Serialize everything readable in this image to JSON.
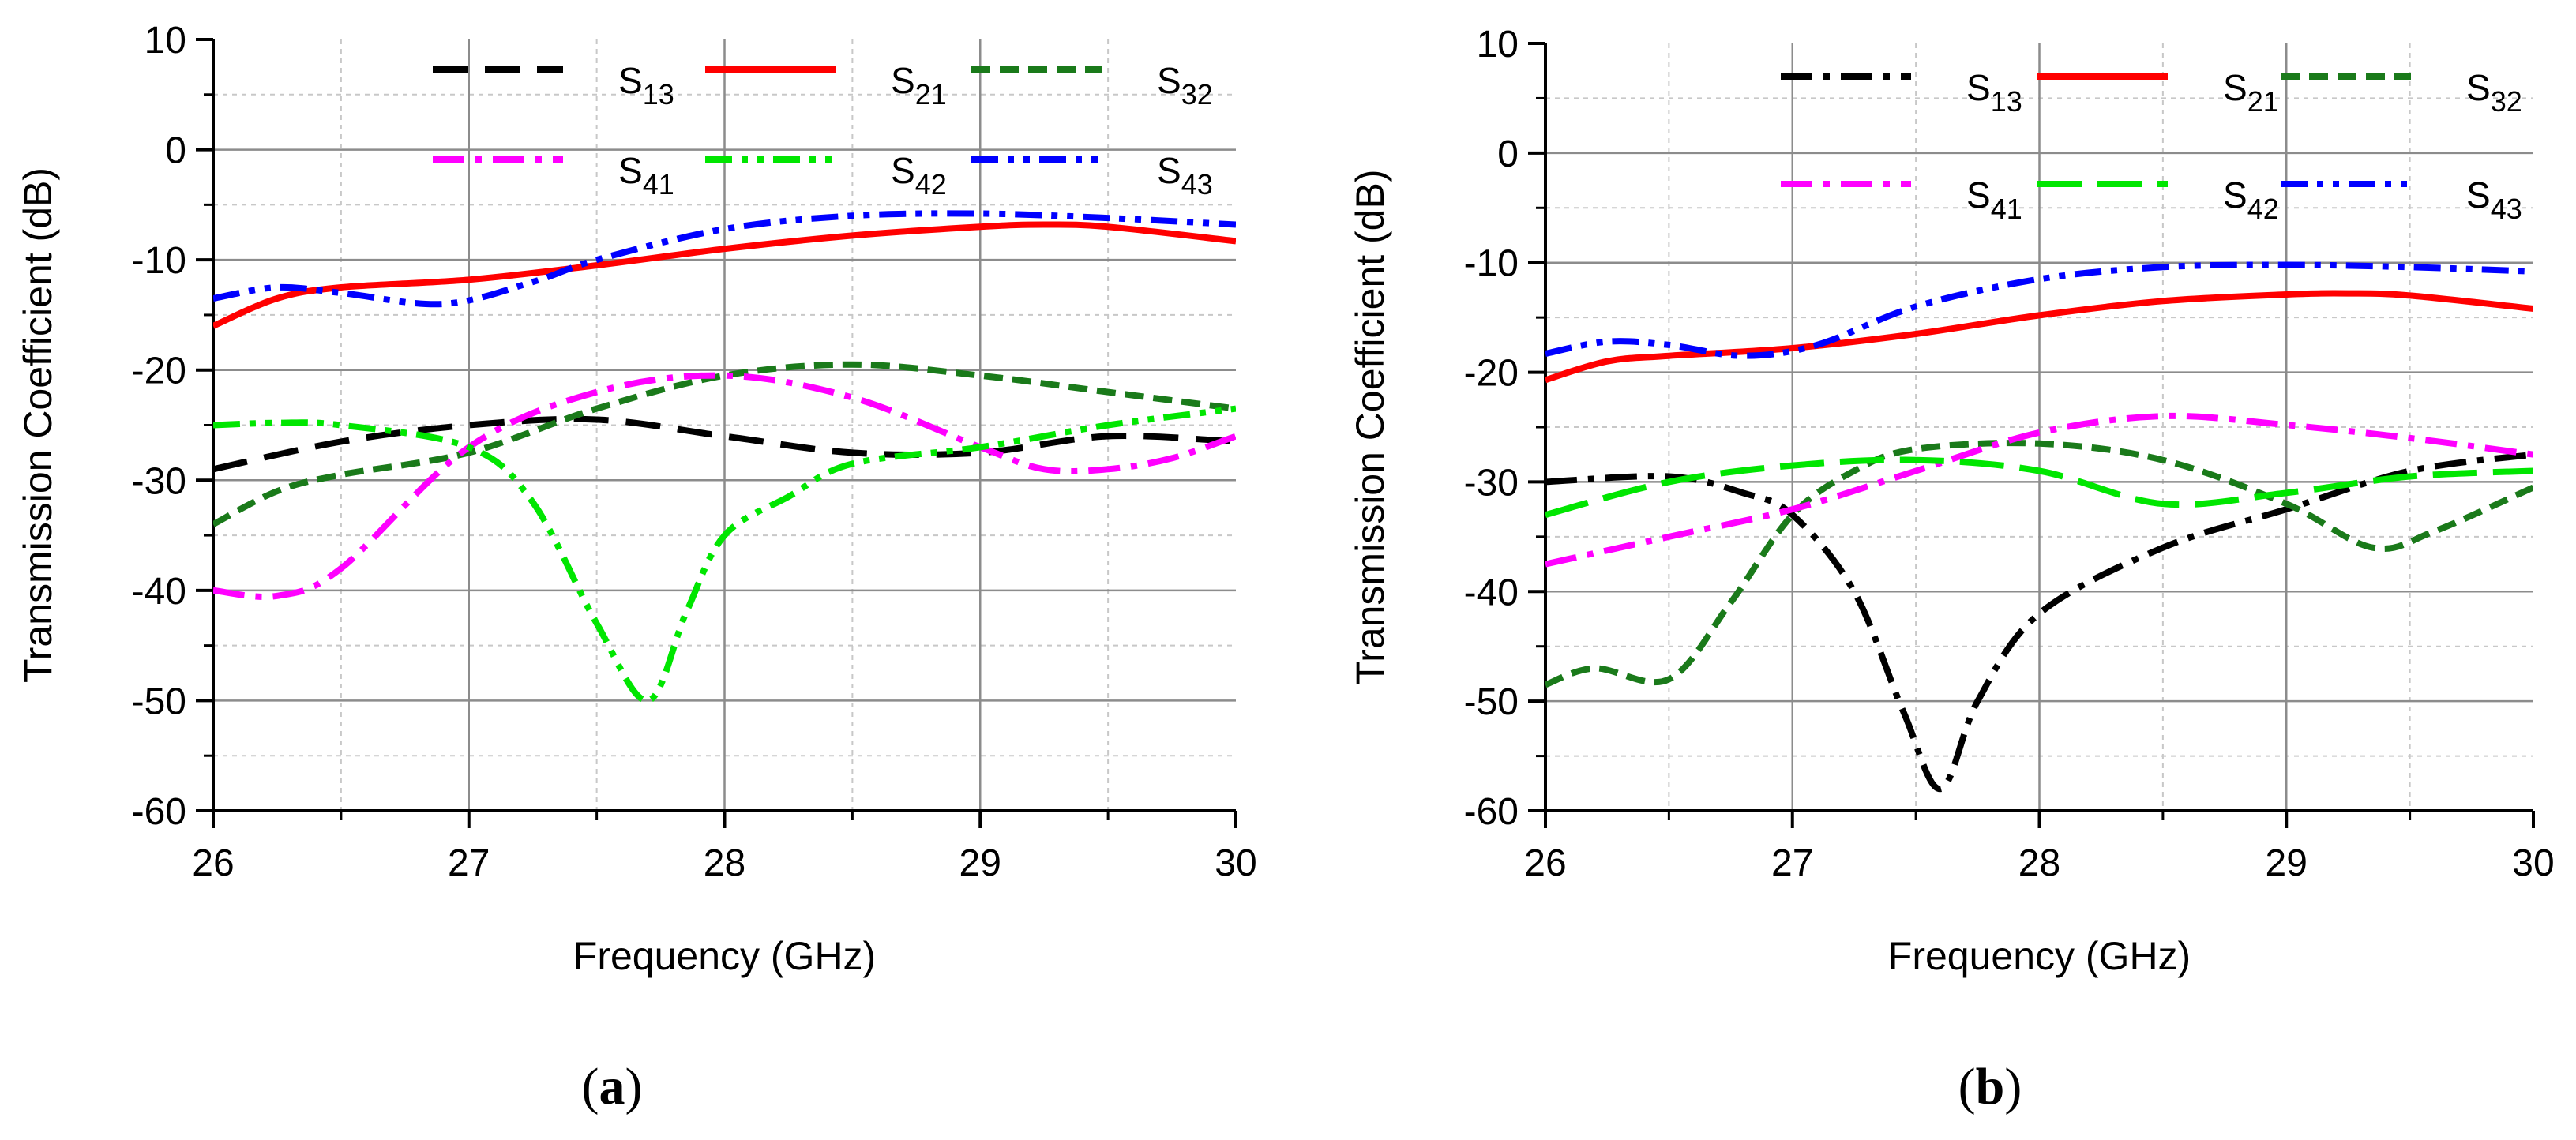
{
  "colors": {
    "s13": "#000000",
    "s21": "#ff0000",
    "s32": "#1a7a1a",
    "s41": "#ff00ff",
    "s42": "#00e600",
    "s43": "#0000ff",
    "grid_major": "#8c8c8c",
    "grid_minor": "#c8c8c8"
  },
  "chart_data": [
    {
      "id": "a",
      "type": "line",
      "caption_open": "(",
      "caption_letter": "a",
      "caption_close": ")",
      "xlabel": "Frequency (GHz)",
      "ylabel": "Transmission Coefficient (dB)",
      "xlim": [
        26,
        30
      ],
      "ylim": [
        -60,
        10
      ],
      "xticks": [
        26,
        27,
        28,
        29,
        30
      ],
      "yticks": [
        10,
        0,
        -10,
        -20,
        -30,
        -40,
        -50,
        -60
      ],
      "grid": true,
      "legend_position": "top",
      "series": [
        {
          "key": "s13",
          "name": "S",
          "sub": "13",
          "dash": "dash",
          "x": [
            26,
            26.5,
            27,
            27.5,
            28,
            28.5,
            29,
            29.5,
            30
          ],
          "y": [
            -29,
            -26.5,
            -25,
            -24.5,
            -26,
            -27.5,
            -27.5,
            -26,
            -26.5
          ]
        },
        {
          "key": "s21",
          "name": "S",
          "sub": "21",
          "dash": "solid",
          "x": [
            26,
            26.25,
            26.5,
            27,
            27.5,
            28,
            28.5,
            29,
            29.25,
            29.5,
            30
          ],
          "y": [
            -16,
            -13.5,
            -12.5,
            -11.8,
            -10.5,
            -9,
            -7.8,
            -7,
            -6.8,
            -7,
            -8.3
          ]
        },
        {
          "key": "s32",
          "name": "S",
          "sub": "32",
          "dash": "shortdash",
          "x": [
            26,
            26.25,
            26.5,
            27,
            27.5,
            28,
            28.5,
            29,
            29.5,
            30
          ],
          "y": [
            -34,
            -31,
            -29.5,
            -27.5,
            -23.5,
            -20.5,
            -19.5,
            -20.5,
            -22,
            -23.5
          ]
        },
        {
          "key": "s41",
          "name": "S",
          "sub": "41",
          "dash": "dashdot",
          "x": [
            26,
            26.25,
            26.5,
            27,
            27.5,
            28,
            28.5,
            29,
            29.25,
            29.5,
            29.75,
            30
          ],
          "y": [
            -40,
            -40.5,
            -38,
            -27,
            -22,
            -20.5,
            -22.5,
            -27,
            -29,
            -29,
            -28,
            -26
          ]
        },
        {
          "key": "s42",
          "name": "S",
          "sub": "42",
          "dash": "dashdotdot",
          "x": [
            26,
            26.25,
            26.5,
            27,
            27.25,
            27.5,
            27.7,
            27.85,
            28,
            28.25,
            28.5,
            29,
            29.5,
            30
          ],
          "y": [
            -25,
            -24.8,
            -25,
            -27,
            -32,
            -43,
            -50,
            -42,
            -35,
            -31.5,
            -28.5,
            -27,
            -25,
            -23.5
          ]
        },
        {
          "key": "s43",
          "name": "S",
          "sub": "43",
          "dash": "dashdotdot",
          "x": [
            26,
            26.25,
            26.5,
            26.9,
            27.25,
            27.5,
            28,
            28.5,
            29,
            29.5,
            30
          ],
          "y": [
            -13.5,
            -12.5,
            -13,
            -14,
            -12,
            -10,
            -7.2,
            -6,
            -5.8,
            -6.2,
            -6.8
          ]
        }
      ]
    },
    {
      "id": "b",
      "type": "line",
      "caption_open": "(",
      "caption_letter": "b",
      "caption_close": ")",
      "xlabel": "Frequency (GHz)",
      "ylabel": "Transmission Coefficient (dB)",
      "xlim": [
        26,
        30
      ],
      "ylim": [
        -60,
        10
      ],
      "xticks": [
        26,
        27,
        28,
        29,
        30
      ],
      "yticks": [
        10,
        0,
        -10,
        -20,
        -30,
        -40,
        -50,
        -60
      ],
      "grid": true,
      "legend_position": "top",
      "series": [
        {
          "key": "s13",
          "name": "S",
          "sub": "13",
          "dash": "dashdot",
          "x": [
            26,
            26.5,
            26.8,
            27,
            27.25,
            27.45,
            27.6,
            27.75,
            28,
            28.5,
            29,
            29.5,
            30
          ],
          "y": [
            -30,
            -29.5,
            -31,
            -33,
            -40,
            -51,
            -58,
            -50,
            -42,
            -36,
            -32.5,
            -29,
            -27.5
          ]
        },
        {
          "key": "s21",
          "name": "S",
          "sub": "21",
          "dash": "solid",
          "x": [
            26,
            26.25,
            26.5,
            27,
            27.5,
            28,
            28.5,
            29,
            29.25,
            29.5,
            30
          ],
          "y": [
            -20.7,
            -19,
            -18.5,
            -17.8,
            -16.5,
            -14.8,
            -13.5,
            -12.9,
            -12.8,
            -13,
            -14.2
          ]
        },
        {
          "key": "s32",
          "name": "S",
          "sub": "32",
          "dash": "shortdash",
          "x": [
            26,
            26.2,
            26.5,
            26.75,
            27,
            27.25,
            27.5,
            28,
            28.5,
            29,
            29.35,
            29.6,
            30
          ],
          "y": [
            -48.5,
            -47,
            -48,
            -41,
            -33,
            -29,
            -27,
            -26.5,
            -28,
            -32,
            -36,
            -34.5,
            -30.5
          ]
        },
        {
          "key": "s41",
          "name": "S",
          "sub": "41",
          "dash": "dashdot",
          "x": [
            26,
            26.5,
            27,
            27.5,
            28,
            28.5,
            29,
            29.5,
            30
          ],
          "y": [
            -37.5,
            -35,
            -32.5,
            -29,
            -25.5,
            -24,
            -24.8,
            -26,
            -27.5
          ]
        },
        {
          "key": "s42",
          "name": "S",
          "sub": "42",
          "dash": "longdash",
          "x": [
            26,
            26.5,
            27,
            27.5,
            28,
            28.5,
            29,
            29.5,
            30
          ],
          "y": [
            -33,
            -30,
            -28.5,
            -28,
            -29,
            -32,
            -31,
            -29.5,
            -29
          ]
        },
        {
          "key": "s43",
          "name": "S",
          "sub": "43",
          "dash": "dashdotdot",
          "x": [
            26,
            26.25,
            26.5,
            26.8,
            27.1,
            27.5,
            28,
            28.5,
            29,
            29.5,
            30
          ],
          "y": [
            -18.3,
            -17.2,
            -17.5,
            -18.5,
            -17.5,
            -14,
            -11.5,
            -10.4,
            -10.2,
            -10.4,
            -10.8
          ]
        }
      ]
    }
  ]
}
